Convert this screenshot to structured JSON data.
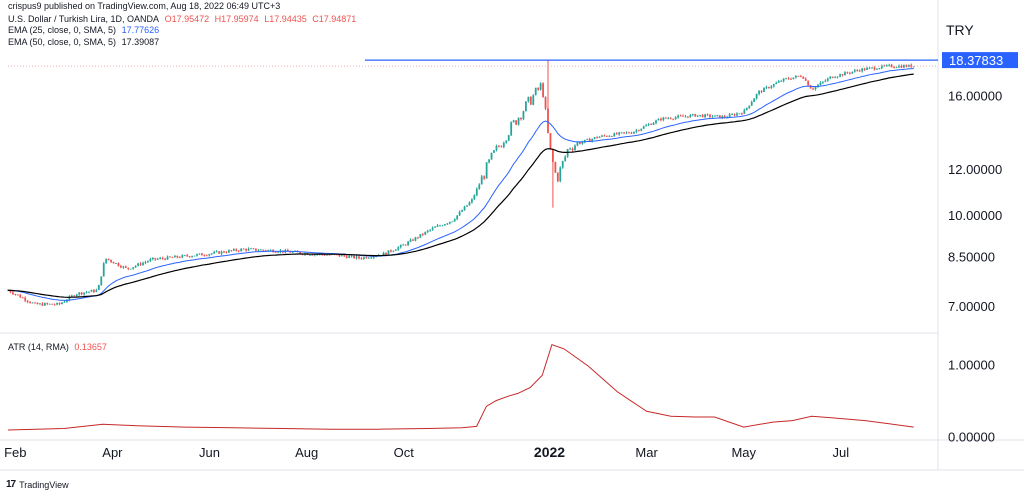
{
  "header": {
    "attribution": "crispus9 published on TradingView.com, Aug 18, 2022 06:49 UTC+3",
    "title": "U.S. Dollar / Turkish Lira, 1D, OANDA",
    "ohlc": {
      "o": "O17.95472",
      "h": "H17.95974",
      "l": "L17.94435",
      "c": "C17.94871"
    },
    "ema25_label": "EMA (25, close, 0, SMA, 5)",
    "ema25_value": "17.77626",
    "ema50_label": "EMA (50, close, 0, SMA, 5)",
    "ema50_value": "17.39087",
    "atr_label": "ATR (14, RMA)",
    "atr_value": "0.13657"
  },
  "currency": "TRY",
  "brand": "TradingView",
  "colors": {
    "up": "#26a69a",
    "down": "#ef5350",
    "ema25": "#2962ff",
    "ema50": "#000000",
    "atr": "#c62828",
    "hline": "#2962ff",
    "price_tag": "#2962ff"
  },
  "chart_data": [
    {
      "type": "candlestick",
      "title": "U.S. Dollar / Turkish Lira, 1D, OANDA",
      "y_scale": "log",
      "ylim": [
        6.3,
        19.5
      ],
      "y_ticks": [
        {
          "value": 7.0,
          "label": "7.00000"
        },
        {
          "value": 8.5,
          "label": "8.50000"
        },
        {
          "value": 10.0,
          "label": "10.00000"
        },
        {
          "value": 12.0,
          "label": "12.00000"
        },
        {
          "value": 16.0,
          "label": "16.00000"
        }
      ],
      "last_price_label": "18.37833",
      "last_price": 18.37833,
      "horizontal_line": 18.37833,
      "x_ticks": [
        "Feb",
        "Apr",
        "Jun",
        "Aug",
        "Oct",
        "2022",
        "Mar",
        "May",
        "Jul"
      ],
      "x_tick_positions_month_index": [
        0,
        2,
        4,
        6,
        8,
        11,
        13,
        15,
        17
      ],
      "x_month_range": [
        -0.15,
        19.0
      ],
      "close_anchors": [
        {
          "m": -0.15,
          "v": 7.45
        },
        {
          "m": 0.4,
          "v": 7.05
        },
        {
          "m": 0.9,
          "v": 7.05
        },
        {
          "m": 1.25,
          "v": 7.35
        },
        {
          "m": 1.7,
          "v": 7.45
        },
        {
          "m": 1.85,
          "v": 8.45
        },
        {
          "m": 2.3,
          "v": 8.1
        },
        {
          "m": 2.8,
          "v": 8.4
        },
        {
          "m": 3.4,
          "v": 8.5
        },
        {
          "m": 4.0,
          "v": 8.6
        },
        {
          "m": 4.7,
          "v": 8.75
        },
        {
          "m": 5.4,
          "v": 8.7
        },
        {
          "m": 6.0,
          "v": 8.6
        },
        {
          "m": 6.6,
          "v": 8.55
        },
        {
          "m": 7.1,
          "v": 8.45
        },
        {
          "m": 7.6,
          "v": 8.6
        },
        {
          "m": 8.0,
          "v": 8.9
        },
        {
          "m": 8.6,
          "v": 9.5
        },
        {
          "m": 9.0,
          "v": 9.8
        },
        {
          "m": 9.4,
          "v": 10.6
        },
        {
          "m": 9.8,
          "v": 12.5
        },
        {
          "m": 10.15,
          "v": 13.9
        },
        {
          "m": 10.55,
          "v": 15.5
        },
        {
          "m": 10.85,
          "v": 16.7
        },
        {
          "m": 11.0,
          "v": 13.0
        },
        {
          "m": 11.15,
          "v": 11.5
        },
        {
          "m": 11.4,
          "v": 13.1
        },
        {
          "m": 12.0,
          "v": 13.6
        },
        {
          "m": 12.7,
          "v": 13.85
        },
        {
          "m": 13.3,
          "v": 14.6
        },
        {
          "m": 14.0,
          "v": 14.8
        },
        {
          "m": 14.6,
          "v": 14.7
        },
        {
          "m": 15.0,
          "v": 15.0
        },
        {
          "m": 15.3,
          "v": 16.2
        },
        {
          "m": 15.8,
          "v": 17.0
        },
        {
          "m": 16.2,
          "v": 17.3
        },
        {
          "m": 16.4,
          "v": 16.4
        },
        {
          "m": 16.8,
          "v": 17.2
        },
        {
          "m": 17.4,
          "v": 17.7
        },
        {
          "m": 18.0,
          "v": 17.95
        },
        {
          "m": 18.5,
          "v": 17.95
        }
      ],
      "series": [
        {
          "name": "EMA (25, close, 0, SMA, 5)",
          "last_value": 17.77626
        },
        {
          "name": "EMA (50, close, 0, SMA, 5)",
          "last_value": 17.39087
        }
      ],
      "annotations": {
        "spike_high": {
          "m": 10.95,
          "v": 18.38
        },
        "spike_low": {
          "m": 11.05,
          "v": 10.3
        }
      }
    },
    {
      "type": "line",
      "title": "ATR (14, RMA)",
      "ylim": [
        -0.05,
        1.4
      ],
      "y_ticks": [
        {
          "value": 0.0,
          "label": "0.00000"
        },
        {
          "value": 1.0,
          "label": "1.00000"
        }
      ],
      "series": [
        {
          "name": "ATR (14, RMA)",
          "points": [
            {
              "m": -0.15,
              "v": 0.09
            },
            {
              "m": 1.0,
              "v": 0.11
            },
            {
              "m": 1.8,
              "v": 0.17
            },
            {
              "m": 2.5,
              "v": 0.15
            },
            {
              "m": 3.5,
              "v": 0.13
            },
            {
              "m": 4.5,
              "v": 0.12
            },
            {
              "m": 5.5,
              "v": 0.11
            },
            {
              "m": 6.5,
              "v": 0.1
            },
            {
              "m": 7.5,
              "v": 0.1
            },
            {
              "m": 8.5,
              "v": 0.11
            },
            {
              "m": 9.2,
              "v": 0.12
            },
            {
              "m": 9.5,
              "v": 0.14
            },
            {
              "m": 9.7,
              "v": 0.42
            },
            {
              "m": 9.9,
              "v": 0.5
            },
            {
              "m": 10.15,
              "v": 0.56
            },
            {
              "m": 10.35,
              "v": 0.6
            },
            {
              "m": 10.6,
              "v": 0.68
            },
            {
              "m": 10.85,
              "v": 0.85
            },
            {
              "m": 11.05,
              "v": 1.28
            },
            {
              "m": 11.3,
              "v": 1.22
            },
            {
              "m": 11.8,
              "v": 0.98
            },
            {
              "m": 12.4,
              "v": 0.62
            },
            {
              "m": 13.0,
              "v": 0.35
            },
            {
              "m": 13.5,
              "v": 0.28
            },
            {
              "m": 14.0,
              "v": 0.27
            },
            {
              "m": 14.4,
              "v": 0.27
            },
            {
              "m": 15.0,
              "v": 0.13
            },
            {
              "m": 15.6,
              "v": 0.2
            },
            {
              "m": 16.0,
              "v": 0.22
            },
            {
              "m": 16.4,
              "v": 0.28
            },
            {
              "m": 16.8,
              "v": 0.26
            },
            {
              "m": 17.5,
              "v": 0.22
            },
            {
              "m": 18.5,
              "v": 0.13
            }
          ]
        }
      ],
      "last_value_label": "0.13657"
    }
  ]
}
